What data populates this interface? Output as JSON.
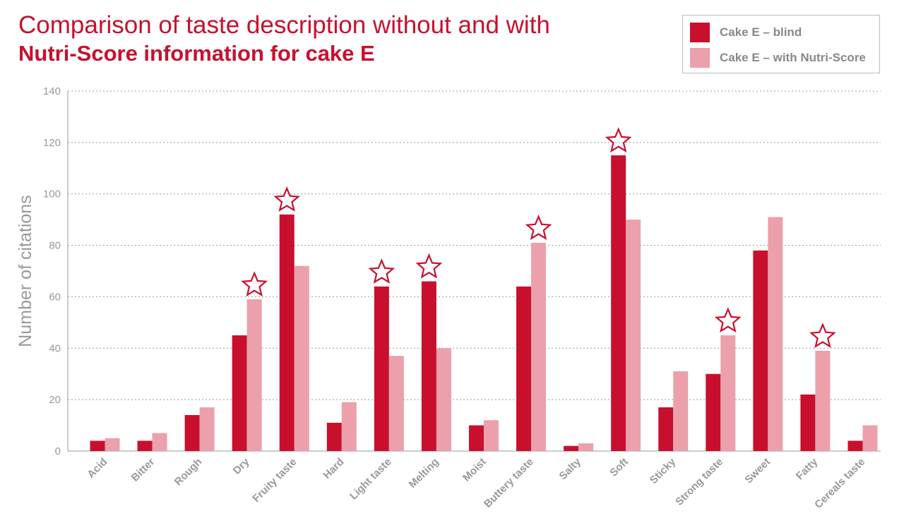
{
  "title_line1": "Comparison of taste description without and with",
  "title_line2": "Nutri-Score information for cake E",
  "colors": {
    "blind": "#c8102e",
    "nutri": "#eba0ab",
    "axis": "#999999"
  },
  "chart_data": {
    "type": "bar",
    "ylabel": "Number of citations",
    "xlabel": "",
    "ylim": [
      0,
      140
    ],
    "yticks": [
      0,
      20,
      40,
      60,
      80,
      100,
      120,
      140
    ],
    "grid": "horizontal-dotted",
    "legend_position": "top-right",
    "categories": [
      "Acid",
      "Bitter",
      "Rough",
      "Dry",
      "Fruity taste",
      "Hard",
      "Light taste",
      "Melting",
      "Moist",
      "Buttery taste",
      "Salty",
      "Soft",
      "Sticky",
      "Strong taste",
      "Sweet",
      "Fatty",
      "Cereals taste"
    ],
    "series": [
      {
        "name": "Cake E – blind",
        "values": [
          4,
          4,
          14,
          45,
          92,
          11,
          64,
          66,
          10,
          64,
          2,
          115,
          17,
          30,
          78,
          22,
          4
        ]
      },
      {
        "name": "Cake E – with Nutri-Score",
        "values": [
          5,
          7,
          17,
          59,
          72,
          19,
          37,
          40,
          12,
          81,
          3,
          90,
          31,
          45,
          91,
          39,
          10
        ]
      }
    ],
    "significant_star": [
      "Dry",
      "Fruity taste",
      "Light taste",
      "Melting",
      "Buttery taste",
      "Soft",
      "Strong taste",
      "Fatty"
    ]
  }
}
